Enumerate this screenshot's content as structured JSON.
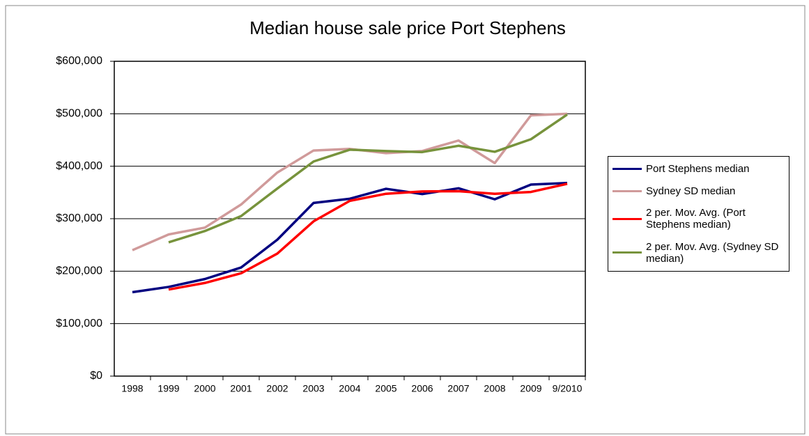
{
  "chart_data": {
    "type": "line",
    "title": "Median house sale price Port Stephens",
    "categories": [
      "1998",
      "1999",
      "2000",
      "2001",
      "2002",
      "2003",
      "2004",
      "2005",
      "2006",
      "2007",
      "2008",
      "2009",
      "9/2010"
    ],
    "series": [
      {
        "name": "Port Stephens median",
        "color": "#000080",
        "values": [
          160000,
          170000,
          185000,
          207000,
          260000,
          330000,
          338000,
          357000,
          347000,
          358000,
          337000,
          365000,
          368000
        ]
      },
      {
        "name": "Sydney SD median",
        "color": "#d09a9a",
        "values": [
          240000,
          270000,
          283000,
          327000,
          388000,
          430000,
          433000,
          425000,
          429000,
          449000,
          406000,
          497000,
          500000
        ]
      },
      {
        "name": "2 per. Mov. Avg. (Port Stephens median)",
        "color": "#ff0000",
        "values": [
          null,
          165000,
          177500,
          196000,
          233500,
          295000,
          334000,
          347500,
          352000,
          352500,
          347500,
          351000,
          366500
        ]
      },
      {
        "name": "2 per. Mov. Avg. (Sydney SD median)",
        "color": "#77933c",
        "values": [
          null,
          255000,
          276500,
          305000,
          357500,
          409000,
          431500,
          429000,
          427000,
          439000,
          427500,
          451500,
          498500
        ]
      }
    ],
    "ylim": [
      0,
      600000
    ],
    "yticks": [
      {
        "value": 0,
        "label": "$0"
      },
      {
        "value": 100000,
        "label": "$100,000"
      },
      {
        "value": 200000,
        "label": "$200,000"
      },
      {
        "value": 300000,
        "label": "$300,000"
      },
      {
        "value": 400000,
        "label": "$400,000"
      },
      {
        "value": 500000,
        "label": "$500,000"
      },
      {
        "value": 600000,
        "label": "$600,000"
      }
    ],
    "grid": true,
    "legend": "right"
  }
}
